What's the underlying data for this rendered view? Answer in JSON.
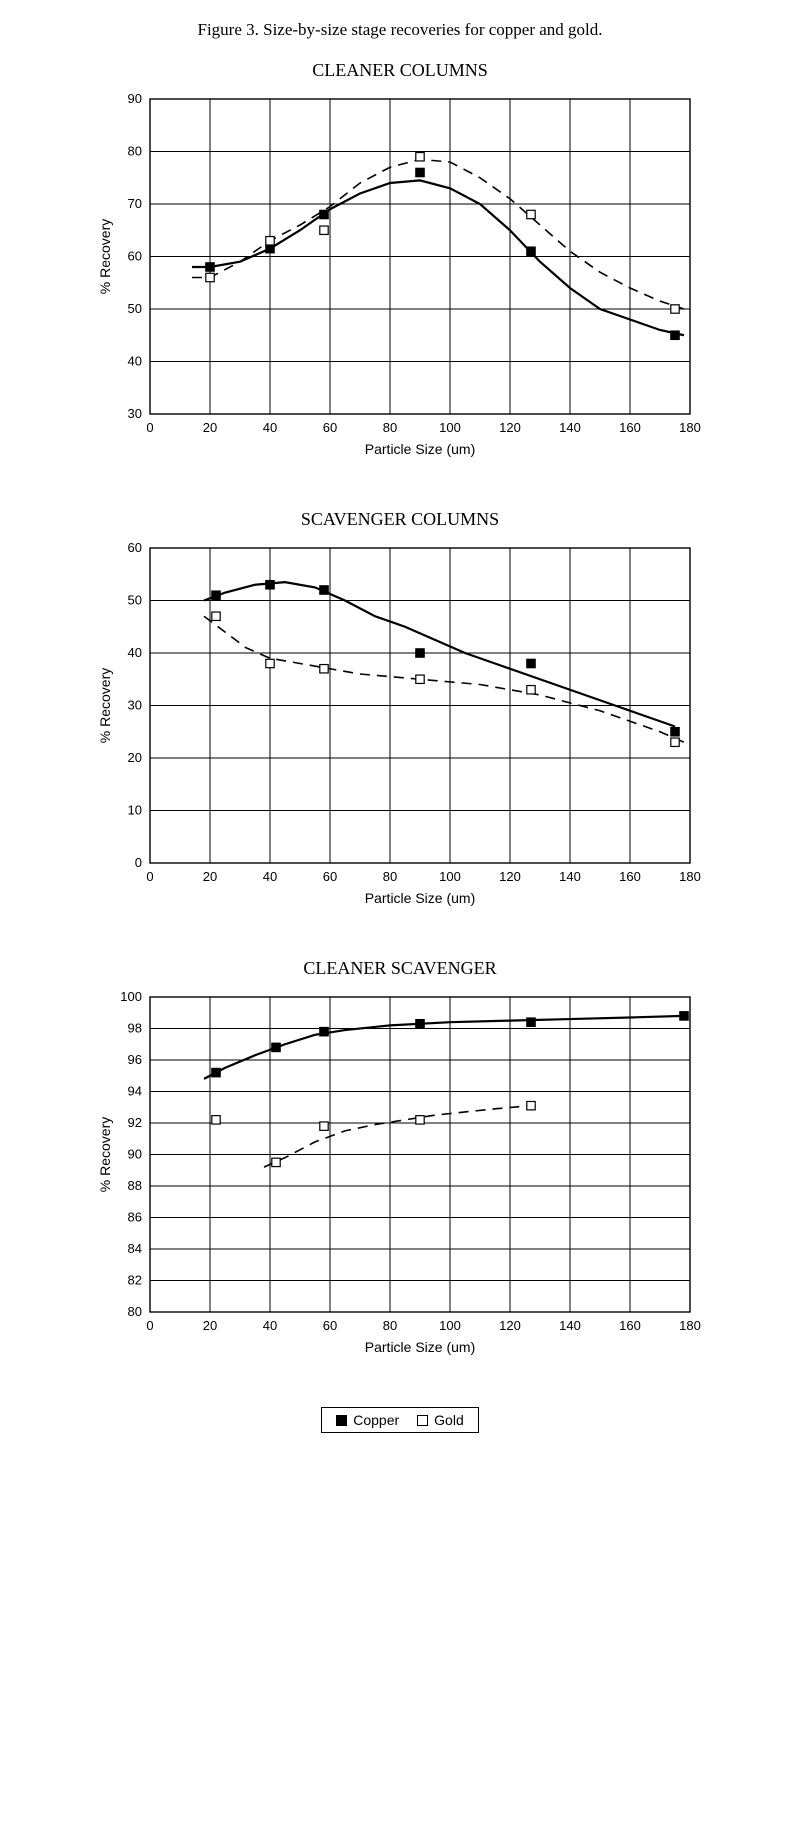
{
  "caption": "Figure 3.   Size-by-size stage recoveries for copper and gold.",
  "legend": {
    "copper": "Copper",
    "gold": "Gold"
  },
  "xlabel": "Particle Size (um)",
  "ylabel": "% Recovery",
  "colors": {
    "grid": "#000000",
    "line": "#000000",
    "marker_fill": "#000000",
    "marker_stroke": "#000000",
    "background": "#ffffff"
  },
  "charts": {
    "cleaner_columns": {
      "title": "CLEANER COLUMNS",
      "xlim": [
        0,
        180
      ],
      "xtick_step": 20,
      "ylim": [
        30,
        90
      ],
      "ytick_step": 10,
      "series": {
        "copper": {
          "points": [
            [
              20,
              58
            ],
            [
              40,
              61.5
            ],
            [
              58,
              68
            ],
            [
              90,
              76
            ],
            [
              127,
              61
            ],
            [
              175,
              45
            ]
          ],
          "curve": [
            [
              14,
              58
            ],
            [
              20,
              58
            ],
            [
              30,
              59
            ],
            [
              40,
              61.5
            ],
            [
              50,
              65
            ],
            [
              60,
              69
            ],
            [
              70,
              72
            ],
            [
              80,
              74
            ],
            [
              90,
              74.5
            ],
            [
              100,
              73
            ],
            [
              110,
              70
            ],
            [
              120,
              65
            ],
            [
              130,
              59
            ],
            [
              140,
              54
            ],
            [
              150,
              50
            ],
            [
              160,
              48
            ],
            [
              170,
              46
            ],
            [
              178,
              45
            ]
          ],
          "dash": false,
          "filled": true
        },
        "gold": {
          "points": [
            [
              20,
              56
            ],
            [
              40,
              63
            ],
            [
              58,
              65
            ],
            [
              90,
              79
            ],
            [
              127,
              68
            ],
            [
              175,
              50
            ]
          ],
          "curve": [
            [
              14,
              56
            ],
            [
              20,
              56
            ],
            [
              30,
              59
            ],
            [
              40,
              63
            ],
            [
              50,
              66
            ],
            [
              60,
              69.5
            ],
            [
              70,
              74
            ],
            [
              80,
              77
            ],
            [
              90,
              78.5
            ],
            [
              100,
              78
            ],
            [
              110,
              75
            ],
            [
              120,
              71
            ],
            [
              130,
              66
            ],
            [
              140,
              61
            ],
            [
              150,
              57
            ],
            [
              160,
              54
            ],
            [
              170,
              51.5
            ],
            [
              178,
              50
            ]
          ],
          "dash": true,
          "filled": false
        }
      }
    },
    "scavenger_columns": {
      "title": "SCAVENGER COLUMNS",
      "xlim": [
        0,
        180
      ],
      "xtick_step": 20,
      "ylim": [
        0,
        60
      ],
      "ytick_step": 10,
      "series": {
        "copper": {
          "points": [
            [
              22,
              51
            ],
            [
              40,
              53
            ],
            [
              58,
              52
            ],
            [
              90,
              40
            ],
            [
              127,
              38
            ],
            [
              175,
              25
            ]
          ],
          "curve": [
            [
              18,
              50
            ],
            [
              25,
              51.5
            ],
            [
              35,
              53
            ],
            [
              45,
              53.5
            ],
            [
              55,
              52.5
            ],
            [
              65,
              50
            ],
            [
              75,
              47
            ],
            [
              85,
              45
            ],
            [
              95,
              42.5
            ],
            [
              105,
              40
            ],
            [
              115,
              38
            ],
            [
              125,
              36
            ],
            [
              135,
              34
            ],
            [
              145,
              32
            ],
            [
              155,
              30
            ],
            [
              165,
              28
            ],
            [
              175,
              26
            ]
          ],
          "dash": false,
          "filled": true
        },
        "gold": {
          "points": [
            [
              22,
              47
            ],
            [
              40,
              38
            ],
            [
              58,
              37
            ],
            [
              90,
              35
            ],
            [
              127,
              33
            ],
            [
              175,
              23
            ]
          ],
          "curve": [
            [
              18,
              47
            ],
            [
              25,
              44
            ],
            [
              32,
              41
            ],
            [
              40,
              39
            ],
            [
              50,
              38
            ],
            [
              60,
              37
            ],
            [
              70,
              36
            ],
            [
              80,
              35.5
            ],
            [
              90,
              35
            ],
            [
              100,
              34.5
            ],
            [
              110,
              34
            ],
            [
              120,
              33
            ],
            [
              130,
              32
            ],
            [
              140,
              30.5
            ],
            [
              150,
              29
            ],
            [
              160,
              27
            ],
            [
              170,
              25
            ],
            [
              178,
              23
            ]
          ],
          "dash": true,
          "filled": false
        }
      }
    },
    "cleaner_scavenger": {
      "title": "CLEANER SCAVENGER",
      "xlim": [
        0,
        180
      ],
      "xtick_step": 20,
      "ylim": [
        80,
        100
      ],
      "ytick_step": 2,
      "series": {
        "copper": {
          "points": [
            [
              22,
              95.2
            ],
            [
              42,
              96.8
            ],
            [
              58,
              97.8
            ],
            [
              90,
              98.3
            ],
            [
              127,
              98.4
            ],
            [
              178,
              98.8
            ]
          ],
          "curve": [
            [
              18,
              94.8
            ],
            [
              25,
              95.5
            ],
            [
              35,
              96.3
            ],
            [
              45,
              97
            ],
            [
              55,
              97.6
            ],
            [
              65,
              97.9
            ],
            [
              80,
              98.2
            ],
            [
              100,
              98.4
            ],
            [
              120,
              98.5
            ],
            [
              140,
              98.6
            ],
            [
              160,
              98.7
            ],
            [
              178,
              98.8
            ]
          ],
          "dash": false,
          "filled": true
        },
        "gold": {
          "points": [
            [
              22,
              92.2
            ],
            [
              42,
              89.5
            ],
            [
              58,
              91.8
            ],
            [
              90,
              92.2
            ],
            [
              127,
              93.1
            ]
          ],
          "curve": [
            [
              38,
              89.2
            ],
            [
              45,
              89.8
            ],
            [
              55,
              90.8
            ],
            [
              65,
              91.5
            ],
            [
              75,
              91.9
            ],
            [
              85,
              92.2
            ],
            [
              95,
              92.5
            ],
            [
              105,
              92.7
            ],
            [
              115,
              92.9
            ],
            [
              127,
              93.1
            ]
          ],
          "dash": true,
          "filled": false
        }
      }
    }
  }
}
